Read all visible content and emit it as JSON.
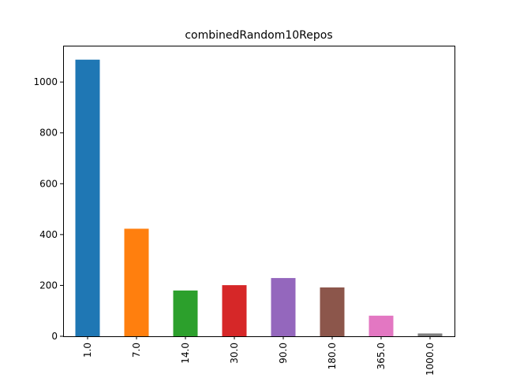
{
  "chart_data": {
    "type": "bar",
    "title": "combinedRandom10Repos",
    "xlabel": "",
    "ylabel": "",
    "categories": [
      "1.0",
      "7.0",
      "14.0",
      "30.0",
      "90.0",
      "180.0",
      "365.0",
      "1000.0"
    ],
    "values": [
      1088,
      423,
      180,
      201,
      229,
      192,
      81,
      11
    ],
    "colors": [
      "#1f77b4",
      "#ff7f0e",
      "#2ca02c",
      "#d62728",
      "#9467bd",
      "#8c564b",
      "#e377c2",
      "#7f7f7f"
    ],
    "ylim": [
      0,
      1143
    ],
    "yticks": [
      0,
      200,
      400,
      600,
      800,
      1000
    ],
    "grid": false,
    "legend": "none"
  }
}
